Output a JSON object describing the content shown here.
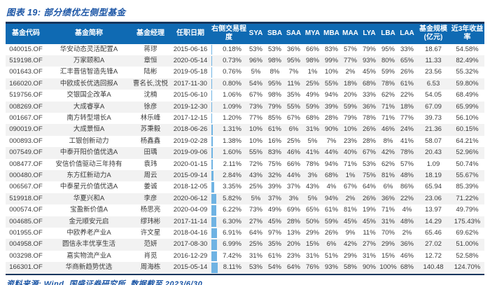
{
  "title": "图表 19: 部分绩优左侧型基金",
  "footer": "资料来源: Wind, 国盛证券研究所, 数据截至 2023/6/30",
  "table": {
    "headers": [
      "基金代码",
      "基金简称",
      "基金经理",
      "任职日期",
      "右侧交易程度",
      "SYA",
      "SBA",
      "SAA",
      "MYA",
      "MBA",
      "MAA",
      "LYA",
      "LBA",
      "LAA",
      "基金规模(亿元)",
      "近3年收益率"
    ],
    "rows": [
      [
        "040015.OF",
        "华安动态灵活配置A",
        "蒋璆",
        "2015-06-16",
        "0.18%",
        "53%",
        "53%",
        "36%",
        "66%",
        "83%",
        "57%",
        "79%",
        "95%",
        "33%",
        "18.67",
        "54.58%"
      ],
      [
        "519198.OF",
        "万家颐和A",
        "章恒",
        "2020-05-14",
        "0.73%",
        "96%",
        "98%",
        "95%",
        "98%",
        "99%",
        "77%",
        "93%",
        "80%",
        "65%",
        "11.33",
        "82.49%"
      ],
      [
        "001643.OF",
        "汇丰晋信智造先锋A",
        "陆彬",
        "2019-05-18",
        "0.76%",
        "5%",
        "8%",
        "7%",
        "1%",
        "10%",
        "2%",
        "45%",
        "59%",
        "26%",
        "23.56",
        "55.32%"
      ],
      [
        "166020.OF",
        "中欧成长优选回报A",
        "曹名长,沈悦",
        "2017-11-30",
        "0.80%",
        "54%",
        "95%",
        "11%",
        "25%",
        "55%",
        "18%",
        "68%",
        "78%",
        "61%",
        "6.53",
        "59.80%"
      ],
      [
        "519756.OF",
        "交银国企改革A",
        "沈楠",
        "2015-06-10",
        "1.06%",
        "67%",
        "98%",
        "35%",
        "49%",
        "94%",
        "20%",
        "33%",
        "62%",
        "22%",
        "54.05",
        "68.49%"
      ],
      [
        "008269.OF",
        "大成睿享A",
        "徐彦",
        "2019-12-30",
        "1.09%",
        "73%",
        "79%",
        "55%",
        "59%",
        "39%",
        "59%",
        "36%",
        "71%",
        "18%",
        "67.09",
        "65.99%"
      ],
      [
        "001667.OF",
        "南方转型增长A",
        "林乐峰",
        "2017-12-15",
        "1.20%",
        "77%",
        "85%",
        "67%",
        "68%",
        "28%",
        "79%",
        "78%",
        "71%",
        "77%",
        "39.73",
        "56.10%"
      ],
      [
        "090019.OF",
        "大成景恒A",
        "苏秉毅",
        "2018-06-26",
        "1.31%",
        "10%",
        "61%",
        "6%",
        "31%",
        "90%",
        "10%",
        "26%",
        "46%",
        "24%",
        "21.36",
        "60.15%"
      ],
      [
        "000893.OF",
        "工银创新动力",
        "杨鑫鑫",
        "2019-02-28",
        "1.38%",
        "10%",
        "16%",
        "25%",
        "5%",
        "7%",
        "23%",
        "28%",
        "8%",
        "41%",
        "58.07",
        "64.21%"
      ],
      [
        "007549.OF",
        "中泰开阳价值优选A",
        "田瑀",
        "2019-09-06",
        "1.60%",
        "55%",
        "83%",
        "46%",
        "41%",
        "44%",
        "40%",
        "67%",
        "42%",
        "78%",
        "20.43",
        "52.96%"
      ],
      [
        "008477.OF",
        "安信价值驱动三年持有",
        "袁玮",
        "2020-01-15",
        "2.11%",
        "72%",
        "75%",
        "66%",
        "78%",
        "94%",
        "71%",
        "53%",
        "62%",
        "57%",
        "1.09",
        "50.74%"
      ],
      [
        "000480.OF",
        "东方红新动力A",
        "周云",
        "2015-09-14",
        "2.84%",
        "43%",
        "32%",
        "44%",
        "3%",
        "68%",
        "1%",
        "75%",
        "81%",
        "48%",
        "18.19",
        "55.67%"
      ],
      [
        "006567.OF",
        "中泰星元价值优选A",
        "姜诚",
        "2018-12-05",
        "3.35%",
        "25%",
        "39%",
        "37%",
        "43%",
        "4%",
        "67%",
        "64%",
        "6%",
        "86%",
        "65.94",
        "85.39%"
      ],
      [
        "519918.OF",
        "华夏兴和A",
        "李彦",
        "2020-06-12",
        "5.82%",
        "5%",
        "37%",
        "3%",
        "5%",
        "94%",
        "2%",
        "26%",
        "36%",
        "22%",
        "23.06",
        "71.22%"
      ],
      [
        "000574.OF",
        "宝盈新价值A",
        "杨思亮",
        "2020-04-09",
        "6.22%",
        "73%",
        "49%",
        "69%",
        "65%",
        "61%",
        "81%",
        "19%",
        "71%",
        "4%",
        "13.97",
        "49.79%"
      ],
      [
        "004685.OF",
        "金元顺安元启",
        "缪玮彬",
        "2017-11-14",
        "6.30%",
        "27%",
        "45%",
        "28%",
        "50%",
        "59%",
        "45%",
        "45%",
        "31%",
        "48%",
        "14.29",
        "175.43%"
      ],
      [
        "001955.OF",
        "中欧养老产业A",
        "许文星",
        "2018-04-16",
        "6.91%",
        "64%",
        "97%",
        "13%",
        "29%",
        "26%",
        "9%",
        "11%",
        "70%",
        "2%",
        "65.46",
        "69.62%"
      ],
      [
        "004958.OF",
        "圆信永丰优享生活",
        "范妍",
        "2017-08-30",
        "6.99%",
        "25%",
        "35%",
        "20%",
        "15%",
        "6%",
        "42%",
        "27%",
        "29%",
        "36%",
        "27.02",
        "51.00%"
      ],
      [
        "003298.OF",
        "嘉实物流产业A",
        "肖觅",
        "2016-12-29",
        "7.42%",
        "31%",
        "61%",
        "23%",
        "31%",
        "51%",
        "29%",
        "31%",
        "15%",
        "46%",
        "12.72",
        "52.58%"
      ],
      [
        "166301.OF",
        "华商新趋势优选",
        "周海栋",
        "2015-05-14",
        "8.11%",
        "53%",
        "54%",
        "64%",
        "76%",
        "93%",
        "58%",
        "90%",
        "100%",
        "68%",
        "140.48",
        "124.70%"
      ]
    ]
  },
  "colors": {
    "header_bg": "#0f6ab3",
    "title_blue": "#1b55a5",
    "border_navy": "#17365d",
    "row_stripe": "#f2f2f2",
    "data_bar": "#6fb3e3"
  }
}
